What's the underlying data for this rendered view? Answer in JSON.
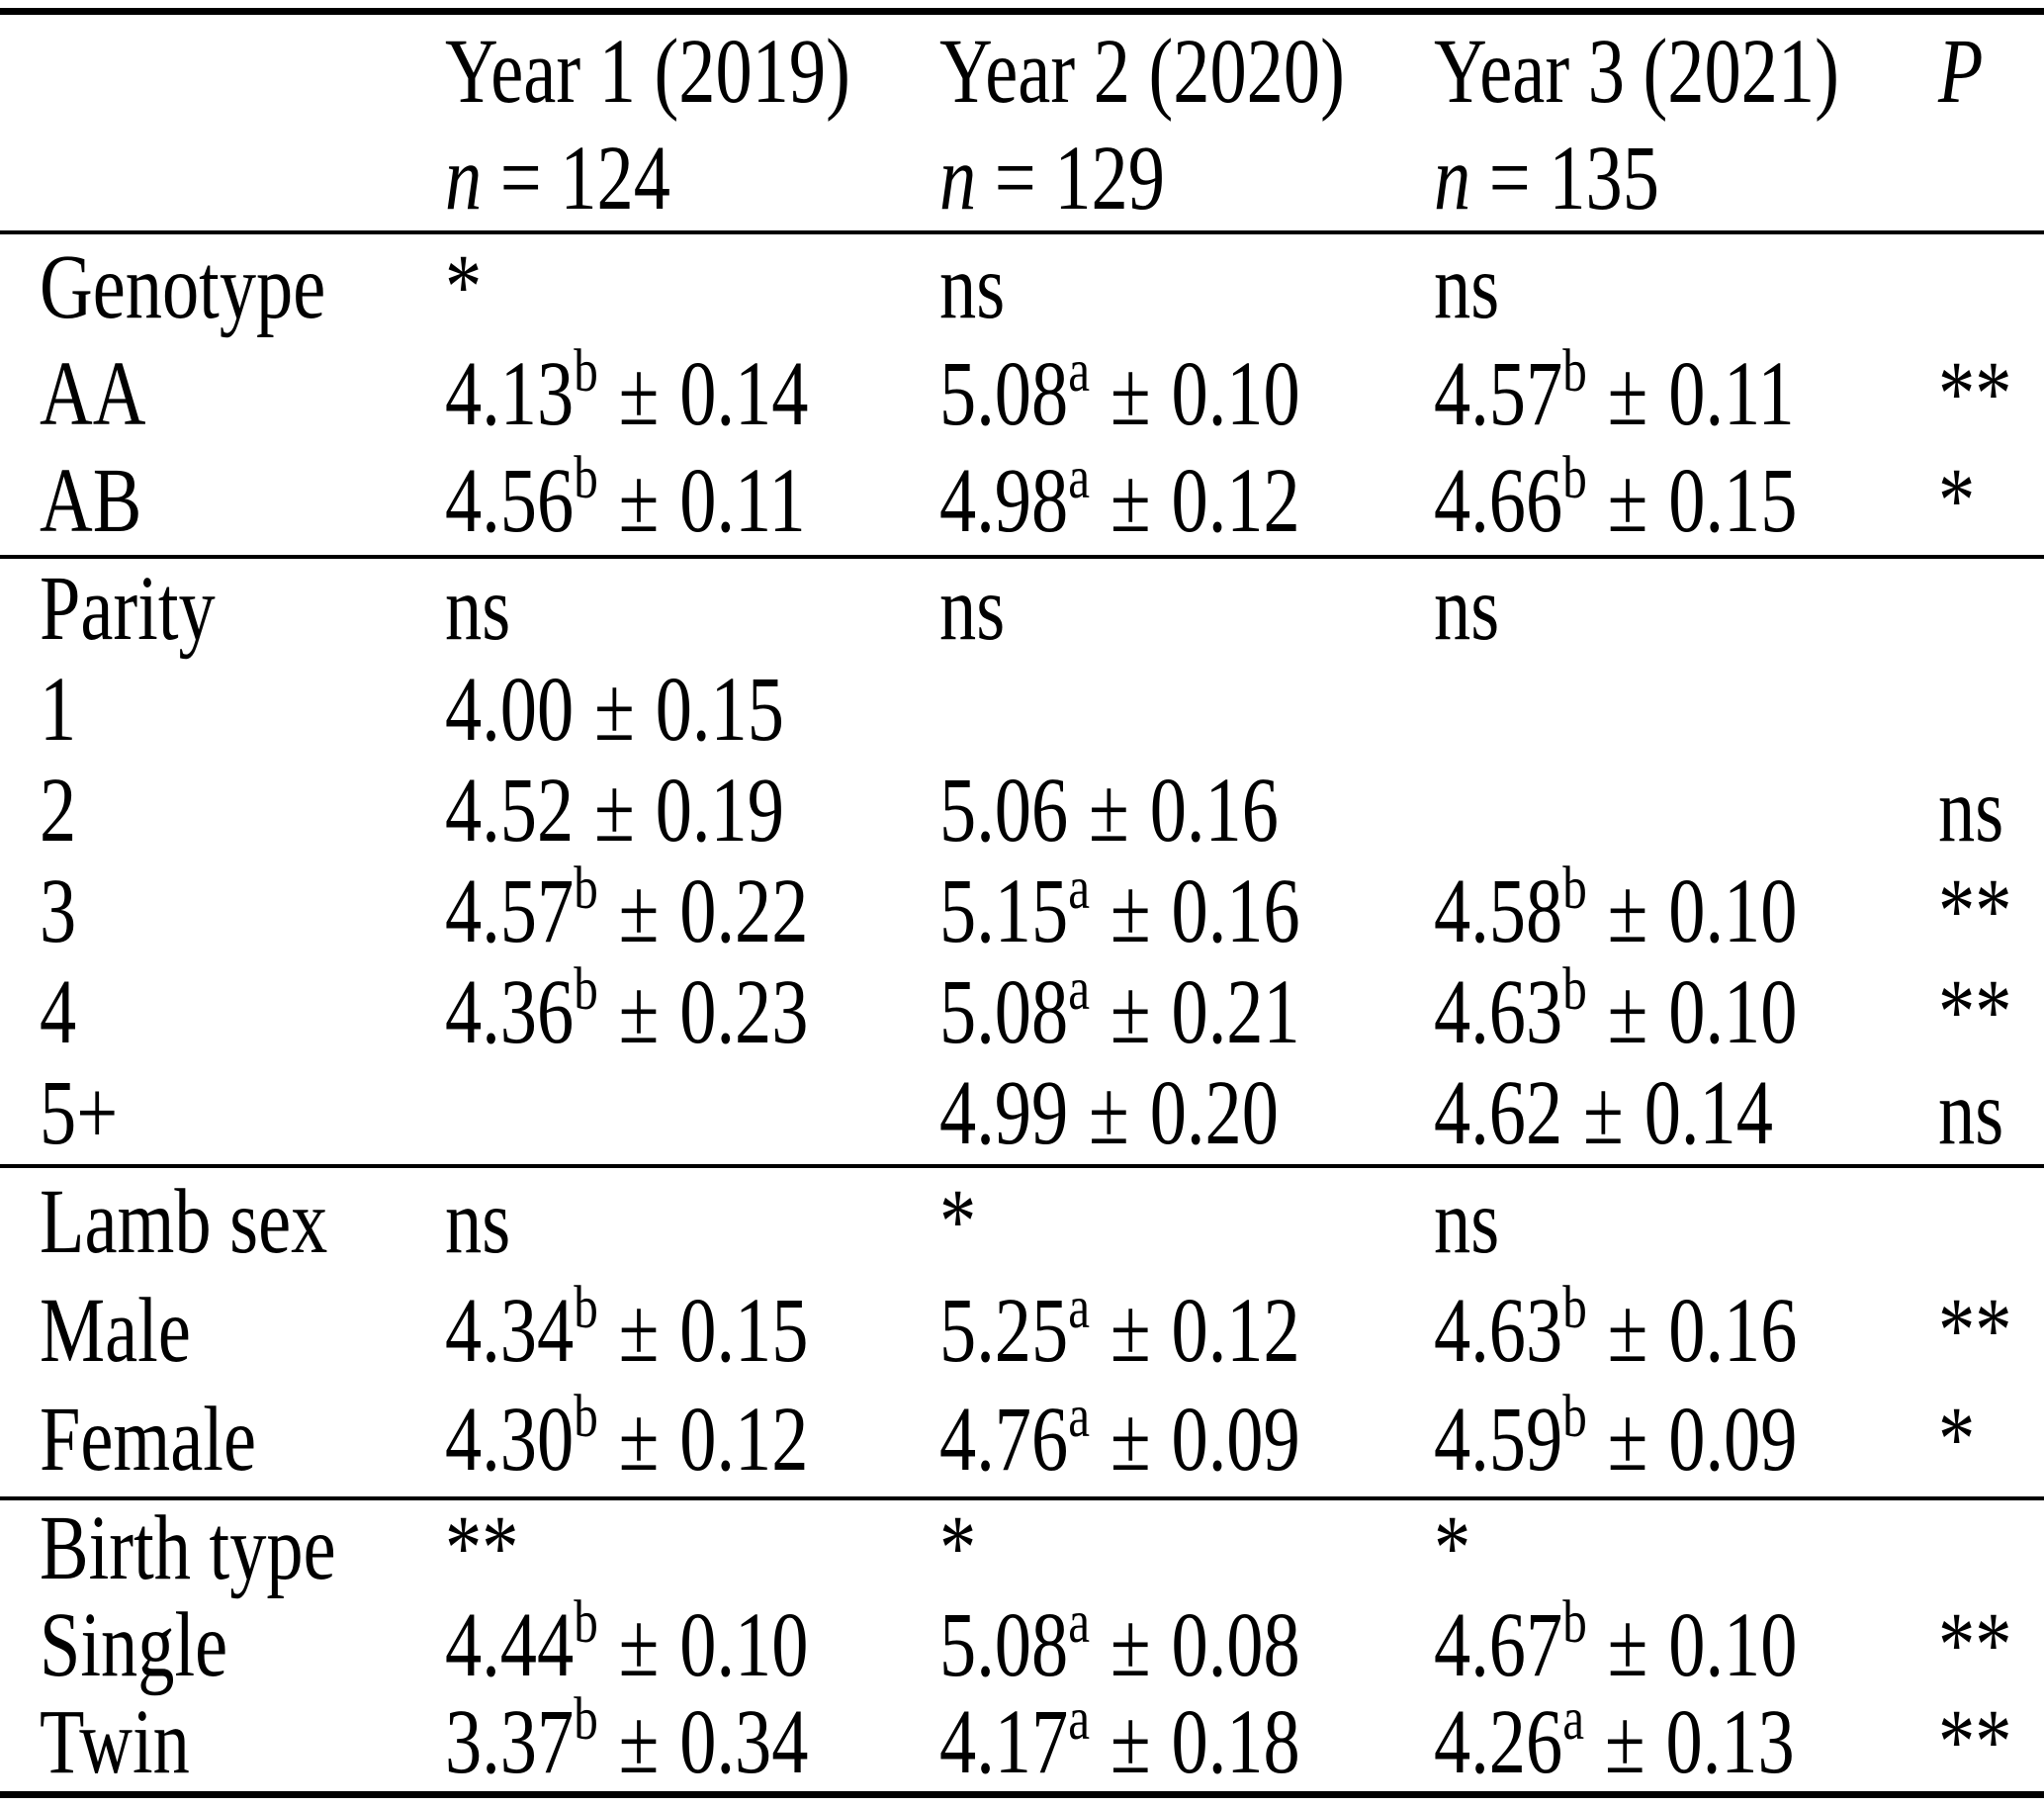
{
  "colors": {
    "background": "#ffffff",
    "text": "#000000",
    "rule": "#000000"
  },
  "table": {
    "type": "table",
    "pm": "±",
    "header": {
      "columns": [
        {
          "title": "Year 1 (2019)",
          "n_var": "n",
          "n_rest": "= 124"
        },
        {
          "title": "Year 2 (2020)",
          "n_var": "n",
          "n_rest": "= 129"
        },
        {
          "title": "Year 3 (2021)",
          "n_var": "n",
          "n_rest": "= 135"
        }
      ],
      "p_label": "P"
    },
    "sections": [
      {
        "name": "genotype",
        "rows": [
          {
            "label": "Genotype",
            "cells": [
              {
                "text": "*"
              },
              {
                "text": "ns"
              },
              {
                "text": "ns"
              }
            ],
            "p": ""
          },
          {
            "label": "AA",
            "cells": [
              {
                "mean": "4.13",
                "sup": "b",
                "err": "0.14"
              },
              {
                "mean": "5.08",
                "sup": "a",
                "err": "0.10"
              },
              {
                "mean": "4.57",
                "sup": "b",
                "err": "0.11"
              }
            ],
            "p": "**"
          },
          {
            "label": "AB",
            "cells": [
              {
                "mean": "4.56",
                "sup": "b",
                "err": "0.11"
              },
              {
                "mean": "4.98",
                "sup": "a",
                "err": "0.12"
              },
              {
                "mean": "4.66",
                "sup": "b",
                "err": "0.15"
              }
            ],
            "p": "*"
          }
        ]
      },
      {
        "name": "parity",
        "rows": [
          {
            "label": "Parity",
            "cells": [
              {
                "text": "ns"
              },
              {
                "text": "ns"
              },
              {
                "text": "ns"
              }
            ],
            "p": ""
          },
          {
            "label": "1",
            "cells": [
              {
                "mean": "4.00",
                "sup": "",
                "err": "0.15"
              },
              null,
              null
            ],
            "p": ""
          },
          {
            "label": "2",
            "cells": [
              {
                "mean": "4.52",
                "sup": "",
                "err": "0.19"
              },
              {
                "mean": "5.06",
                "sup": "",
                "err": "0.16"
              },
              null
            ],
            "p": "ns"
          },
          {
            "label": "3",
            "cells": [
              {
                "mean": "4.57",
                "sup": "b",
                "err": "0.22"
              },
              {
                "mean": "5.15",
                "sup": "a",
                "err": "0.16"
              },
              {
                "mean": "4.58",
                "sup": "b",
                "err": "0.10"
              }
            ],
            "p": "**"
          },
          {
            "label": "4",
            "cells": [
              {
                "mean": "4.36",
                "sup": "b",
                "err": "0.23"
              },
              {
                "mean": "5.08",
                "sup": "a",
                "err": "0.21"
              },
              {
                "mean": "4.63",
                "sup": "b",
                "err": "0.10"
              }
            ],
            "p": "**"
          },
          {
            "label": "5+",
            "cells": [
              null,
              {
                "mean": "4.99",
                "sup": "",
                "err": "0.20"
              },
              {
                "mean": "4.62",
                "sup": "",
                "err": "0.14"
              }
            ],
            "p": "ns"
          }
        ]
      },
      {
        "name": "lamb-sex",
        "rows": [
          {
            "label": "Lamb sex",
            "cells": [
              {
                "text": "ns"
              },
              {
                "text": "*"
              },
              {
                "text": "ns"
              }
            ],
            "p": ""
          },
          {
            "label": "Male",
            "cells": [
              {
                "mean": "4.34",
                "sup": "b",
                "err": "0.15"
              },
              {
                "mean": "5.25",
                "sup": "a",
                "err": "0.12"
              },
              {
                "mean": "4.63",
                "sup": "b",
                "err": "0.16"
              }
            ],
            "p": "**"
          },
          {
            "label": "Female",
            "cells": [
              {
                "mean": "4.30",
                "sup": "b",
                "err": "0.12"
              },
              {
                "mean": "4.76",
                "sup": "a",
                "err": "0.09"
              },
              {
                "mean": "4.59",
                "sup": "b",
                "err": "0.09"
              }
            ],
            "p": "*"
          }
        ]
      },
      {
        "name": "birth-type",
        "rows": [
          {
            "label": "Birth type",
            "cells": [
              {
                "text": "**"
              },
              {
                "text": "*"
              },
              {
                "text": "*"
              }
            ],
            "p": ""
          },
          {
            "label": "Single",
            "cells": [
              {
                "mean": "4.44",
                "sup": "b",
                "err": "0.10"
              },
              {
                "mean": "5.08",
                "sup": "a",
                "err": "0.08"
              },
              {
                "mean": "4.67",
                "sup": "b",
                "err": "0.10"
              }
            ],
            "p": "**"
          },
          {
            "label": "Twin",
            "cells": [
              {
                "mean": "3.37",
                "sup": "b",
                "err": "0.34"
              },
              {
                "mean": "4.17",
                "sup": "a",
                "err": "0.18"
              },
              {
                "mean": "4.26",
                "sup": "a",
                "err": "0.13"
              }
            ],
            "p": "**"
          }
        ]
      }
    ]
  }
}
